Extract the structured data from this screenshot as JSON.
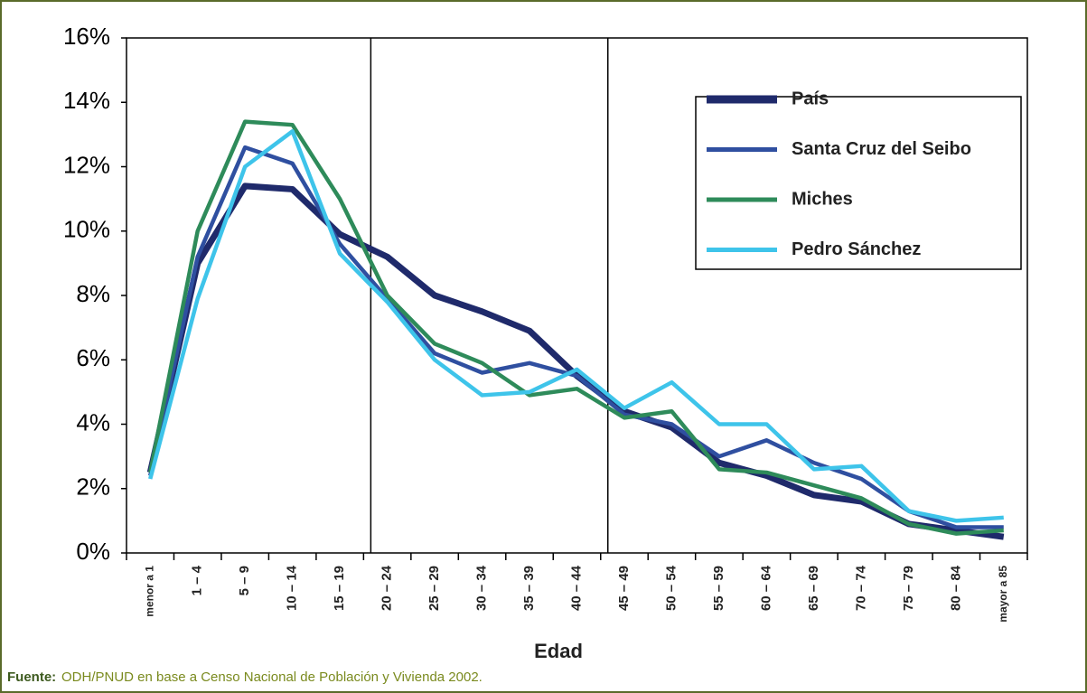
{
  "chart_data": {
    "type": "line",
    "x_label": "Edad",
    "categories": [
      "menor a 1",
      "1 – 4",
      "5 – 9",
      "10 – 14",
      "15 – 19",
      "20 – 24",
      "25 – 29",
      "30 – 34",
      "35 – 39",
      "40 – 44",
      "45 – 49",
      "50 – 54",
      "55 – 59",
      "60 – 64",
      "65 – 69",
      "70 – 74",
      "75 – 79",
      "80 – 84",
      "mayor a 85"
    ],
    "series": [
      {
        "name": "País",
        "color": "#1f2a6b",
        "values": [
          2.5,
          9.0,
          11.4,
          11.3,
          9.9,
          9.2,
          8.0,
          7.5,
          6.9,
          5.5,
          4.4,
          3.9,
          2.8,
          2.4,
          1.8,
          1.6,
          0.9,
          0.7,
          0.5
        ]
      },
      {
        "name": "Santa Cruz del Seibo",
        "color": "#2f4fa0",
        "values": [
          2.4,
          9.2,
          12.6,
          12.1,
          9.6,
          7.9,
          6.2,
          5.6,
          5.9,
          5.5,
          4.3,
          4.0,
          3.0,
          3.5,
          2.8,
          2.3,
          1.3,
          0.8,
          0.8
        ]
      },
      {
        "name": "Miches",
        "color": "#2e8b5a",
        "values": [
          2.5,
          10.0,
          13.4,
          13.3,
          11.0,
          8.0,
          6.5,
          5.9,
          4.9,
          5.1,
          4.2,
          4.4,
          2.6,
          2.5,
          2.1,
          1.7,
          0.9,
          0.6,
          0.7
        ]
      },
      {
        "name": "Pedro Sánchez",
        "color": "#3ec4ea",
        "values": [
          2.3,
          7.9,
          12.0,
          13.1,
          9.3,
          7.8,
          6.0,
          4.9,
          5.0,
          5.7,
          4.5,
          5.3,
          4.0,
          4.0,
          2.6,
          2.7,
          1.3,
          1.0,
          1.1
        ]
      }
    ],
    "ylim": [
      0,
      16
    ],
    "yticks": [
      {
        "value": 0,
        "label": "0%"
      },
      {
        "value": 2,
        "label": "2%"
      },
      {
        "value": 4,
        "label": "4%"
      },
      {
        "value": 6,
        "label": "6%"
      },
      {
        "value": 8,
        "label": "8%"
      },
      {
        "value": 10,
        "label": "10%"
      },
      {
        "value": 12,
        "label": "12%"
      },
      {
        "value": 14,
        "label": "14%"
      },
      {
        "value": 16,
        "label": "16%"
      }
    ],
    "source_label": "Fuente:",
    "source": "ODH/PNUD en base a Censo Nacional de Población y Vivienda 2002."
  }
}
